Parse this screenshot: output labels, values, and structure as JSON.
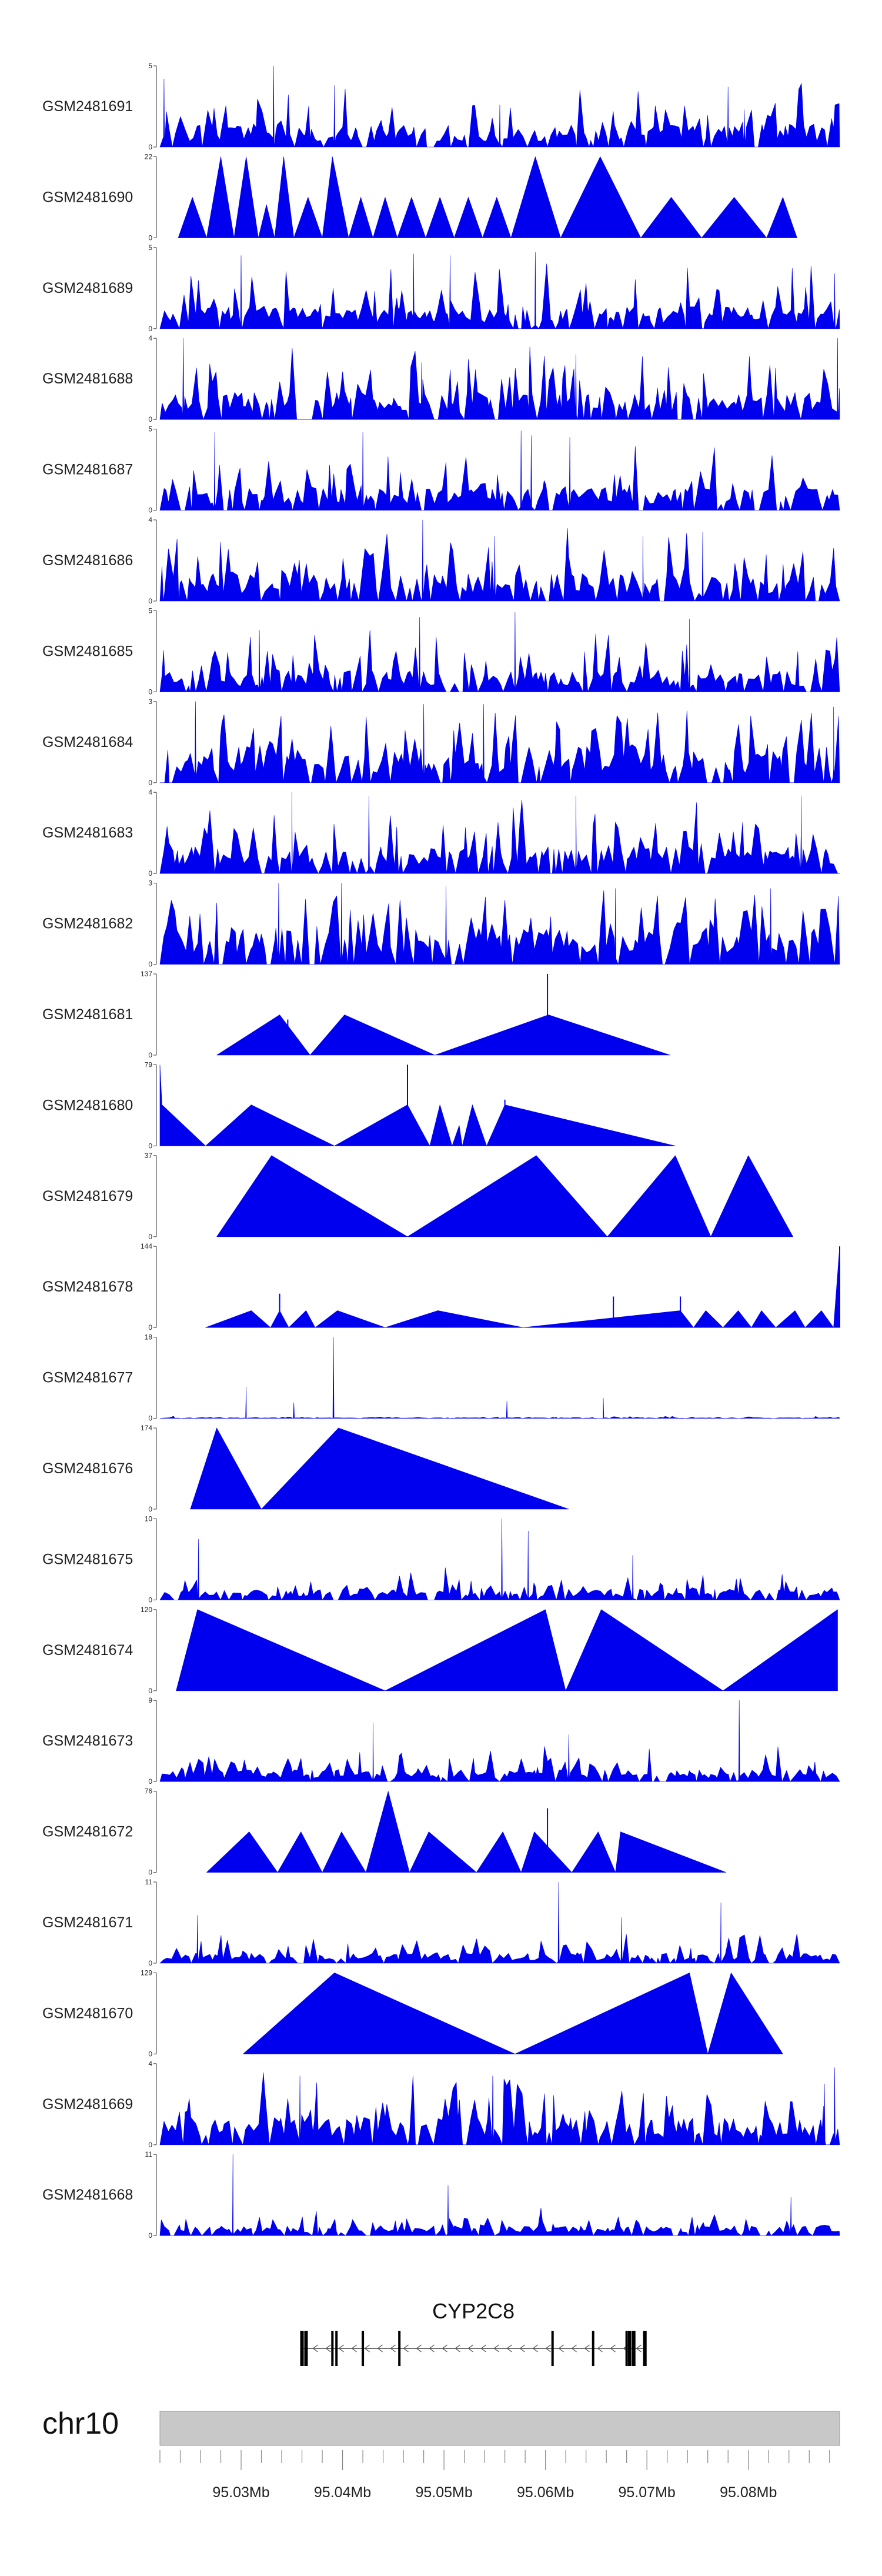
{
  "chart_data": {
    "type": "area",
    "title": "",
    "chromosome": "chr10",
    "gene": {
      "name": "CYP2C8",
      "start": 95036000,
      "end": 95069800,
      "strand": "-",
      "exons": [
        95036000,
        95036400,
        95039000,
        95039400,
        95042000,
        95045600,
        95060700,
        95064700,
        95068000,
        95068300,
        95068700,
        95069800
      ]
    },
    "xlim": [
      95022000,
      95089000
    ],
    "x_ticks": [
      95030000,
      95040000,
      95050000,
      95060000,
      95070000,
      95080000
    ],
    "x_tick_labels": [
      "95.03Mb",
      "95.04Mb",
      "95.05Mb",
      "95.06Mb",
      "95.07Mb",
      "95.08Mb"
    ],
    "series": [
      {
        "name": "GSM2481691",
        "ymax": "5",
        "ymin": "0",
        "ylim": [
          0,
          5
        ],
        "style": "dense",
        "seed": 1,
        "peaks": [
          {
            "x": 95022400,
            "y": 4.2
          },
          {
            "x": 95033200,
            "y": 5
          },
          {
            "x": 95039200,
            "y": 3.8
          },
          {
            "x": 95078000,
            "y": 3.7
          },
          {
            "x": 95079600,
            "y": 2.3
          },
          {
            "x": 95055500,
            "y": 2.6
          }
        ]
      },
      {
        "name": "GSM2481690",
        "ymax": "22",
        "ymin": "0",
        "ylim": [
          0,
          22
        ],
        "style": "sparse",
        "points": [
          [
            95023800,
            0
          ],
          [
            95025200,
            11
          ],
          [
            95026600,
            0
          ],
          [
            95028000,
            22
          ],
          [
            95029300,
            0
          ],
          [
            95030500,
            22
          ],
          [
            95031700,
            0
          ],
          [
            95032500,
            9
          ],
          [
            95033300,
            0
          ],
          [
            95034200,
            22
          ],
          [
            95035200,
            0
          ],
          [
            95036600,
            11
          ],
          [
            95038000,
            0
          ],
          [
            95039000,
            22
          ],
          [
            95040600,
            0
          ],
          [
            95041800,
            11
          ],
          [
            95043000,
            0
          ],
          [
            95044200,
            11
          ],
          [
            95045400,
            0
          ],
          [
            95046800,
            11
          ],
          [
            95048200,
            0
          ],
          [
            95049600,
            11
          ],
          [
            95051000,
            0
          ],
          [
            95052400,
            11
          ],
          [
            95053800,
            0
          ],
          [
            95055200,
            11
          ],
          [
            95056600,
            0
          ],
          [
            95059000,
            22
          ],
          [
            95061500,
            0
          ],
          [
            95065400,
            22
          ],
          [
            95069400,
            0
          ],
          [
            95072400,
            11
          ],
          [
            95075400,
            0
          ],
          [
            95078600,
            11
          ],
          [
            95081800,
            0
          ],
          [
            95083400,
            11
          ],
          [
            95084800,
            0
          ]
        ]
      },
      {
        "name": "GSM2481689",
        "ymax": "5",
        "ymin": "0",
        "ylim": [
          0,
          5
        ],
        "style": "dense",
        "seed": 2,
        "peaks": [
          {
            "x": 95030000,
            "y": 4.5
          },
          {
            "x": 95047000,
            "y": 4.6
          },
          {
            "x": 95050600,
            "y": 4.5
          },
          {
            "x": 95059000,
            "y": 4.7
          },
          {
            "x": 95088500,
            "y": 3.4
          }
        ]
      },
      {
        "name": "GSM2481688",
        "ymax": "4",
        "ymin": "0",
        "ylim": [
          0,
          4
        ],
        "style": "dense",
        "seed": 3,
        "peaks": [
          {
            "x": 95024300,
            "y": 4
          },
          {
            "x": 95088800,
            "y": 4
          },
          {
            "x": 95063000,
            "y": 3.2
          },
          {
            "x": 95047800,
            "y": 2.8
          }
        ]
      },
      {
        "name": "GSM2481687",
        "ymax": "5",
        "ymin": "0",
        "ylim": [
          0,
          5
        ],
        "style": "dense",
        "seed": 4,
        "peaks": [
          {
            "x": 95027400,
            "y": 4.8
          },
          {
            "x": 95042000,
            "y": 4.8
          },
          {
            "x": 95057600,
            "y": 4.9
          },
          {
            "x": 95058600,
            "y": 4.6
          },
          {
            "x": 95062400,
            "y": 4.5
          }
        ]
      },
      {
        "name": "GSM2481686",
        "ymax": "4",
        "ymin": "0",
        "ylim": [
          0,
          4
        ],
        "style": "dense",
        "seed": 5,
        "peaks": [
          {
            "x": 95047900,
            "y": 4
          },
          {
            "x": 95055000,
            "y": 3.2
          },
          {
            "x": 95069600,
            "y": 3.2
          },
          {
            "x": 95075500,
            "y": 3.4
          }
        ]
      },
      {
        "name": "GSM2481685",
        "ymax": "5",
        "ymin": "0",
        "ylim": [
          0,
          5
        ],
        "style": "dense",
        "seed": 6,
        "peaks": [
          {
            "x": 95047600,
            "y": 4.6
          },
          {
            "x": 95057000,
            "y": 4.9
          },
          {
            "x": 95074200,
            "y": 4.5
          },
          {
            "x": 95031800,
            "y": 3.8
          }
        ]
      },
      {
        "name": "GSM2481684",
        "ymax": "3",
        "ymin": "0",
        "ylim": [
          0,
          3
        ],
        "style": "dense",
        "seed": 7,
        "peaks": [
          {
            "x": 95025500,
            "y": 3
          },
          {
            "x": 95048000,
            "y": 2.9
          },
          {
            "x": 95053900,
            "y": 2.9
          },
          {
            "x": 95088400,
            "y": 2.8
          }
        ]
      },
      {
        "name": "GSM2481683",
        "ymax": "4",
        "ymin": "0",
        "ylim": [
          0,
          4
        ],
        "style": "dense",
        "seed": 8,
        "peaks": [
          {
            "x": 95035000,
            "y": 4
          },
          {
            "x": 95042600,
            "y": 3.8
          },
          {
            "x": 95063000,
            "y": 3.8
          },
          {
            "x": 95085200,
            "y": 3.8
          }
        ]
      },
      {
        "name": "GSM2481682",
        "ymax": "3",
        "ymin": "0",
        "ylim": [
          0,
          3
        ],
        "style": "dense",
        "seed": 9,
        "peaks": [
          {
            "x": 95033700,
            "y": 3
          },
          {
            "x": 95039900,
            "y": 3
          },
          {
            "x": 95050200,
            "y": 2.9
          },
          {
            "x": 95082200,
            "y": 2.8
          },
          {
            "x": 95066900,
            "y": 2.8
          }
        ]
      },
      {
        "name": "GSM2481681",
        "ymax": "137",
        "ymin": "0",
        "ylim": [
          0,
          137
        ],
        "style": "sparse",
        "points": [
          [
            95027600,
            0
          ],
          [
            95033800,
            68
          ],
          [
            95036800,
            0
          ],
          [
            95040200,
            68
          ],
          [
            95049100,
            0
          ],
          [
            95060300,
            68
          ],
          [
            95072300,
            0
          ]
        ],
        "spikes": [
          {
            "x": 95034600,
            "y": 60
          },
          {
            "x": 95060200,
            "y": 137
          }
        ]
      },
      {
        "name": "GSM2481680",
        "ymax": "79",
        "ymin": "0",
        "ylim": [
          0,
          79
        ],
        "style": "sparse",
        "points": [
          [
            95022000,
            79
          ],
          [
            95022200,
            40
          ],
          [
            95026500,
            0
          ],
          [
            95031000,
            40
          ],
          [
            95039200,
            0
          ],
          [
            95046400,
            40
          ],
          [
            95048600,
            0
          ],
          [
            95049600,
            40
          ],
          [
            95050800,
            0
          ],
          [
            95051500,
            20
          ],
          [
            95051800,
            0
          ],
          [
            95052800,
            40
          ],
          [
            95054200,
            0
          ],
          [
            95056000,
            40
          ],
          [
            95072800,
            0
          ]
        ],
        "spikes": [
          {
            "x": 95046400,
            "y": 79
          },
          {
            "x": 95056000,
            "y": 45
          }
        ]
      },
      {
        "name": "GSM2481679",
        "ymax": "37",
        "ymin": "0",
        "ylim": [
          0,
          37
        ],
        "style": "sparse",
        "points": [
          [
            95027600,
            0
          ],
          [
            95033000,
            37
          ],
          [
            95046400,
            0
          ],
          [
            95059100,
            37
          ],
          [
            95066100,
            0
          ],
          [
            95072800,
            37
          ],
          [
            95076300,
            0
          ],
          [
            95080000,
            37
          ],
          [
            95084400,
            0
          ]
        ]
      },
      {
        "name": "GSM2481678",
        "ymax": "144",
        "ymin": "0",
        "ylim": [
          0,
          144
        ],
        "style": "sparse",
        "points": [
          [
            95026500,
            0
          ],
          [
            95031000,
            30
          ],
          [
            95032900,
            0
          ],
          [
            95033800,
            30
          ],
          [
            95034700,
            0
          ],
          [
            95036400,
            30
          ],
          [
            95037300,
            0
          ],
          [
            95039500,
            30
          ],
          [
            95044200,
            0
          ],
          [
            95049400,
            30
          ],
          [
            95057800,
            0
          ],
          [
            95073300,
            30
          ],
          [
            95074600,
            0
          ],
          [
            95075800,
            30
          ],
          [
            95077500,
            0
          ],
          [
            95079000,
            30
          ],
          [
            95080300,
            0
          ],
          [
            95081300,
            30
          ],
          [
            95082700,
            0
          ],
          [
            95084600,
            30
          ],
          [
            95085600,
            0
          ],
          [
            95087200,
            30
          ],
          [
            95088400,
            0
          ],
          [
            95089000,
            144
          ]
        ],
        "spikes": [
          {
            "x": 95033800,
            "y": 60
          },
          {
            "x": 95066700,
            "y": 55
          },
          {
            "x": 95073300,
            "y": 55
          },
          {
            "x": 95089000,
            "y": 144
          }
        ]
      },
      {
        "name": "GSM2481677",
        "ymax": "18",
        "ymin": "0",
        "ylim": [
          0,
          18
        ],
        "style": "dense",
        "seed": 10,
        "base": 0.12,
        "peaks": [
          {
            "x": 95039100,
            "y": 18
          },
          {
            "x": 95030500,
            "y": 7
          },
          {
            "x": 95035200,
            "y": 3.5
          },
          {
            "x": 95056200,
            "y": 3.8
          },
          {
            "x": 95065700,
            "y": 4.5
          }
        ]
      },
      {
        "name": "GSM2481676",
        "ymax": "174",
        "ymin": "0",
        "ylim": [
          0,
          174
        ],
        "style": "sparse",
        "points": [
          [
            95025000,
            0
          ],
          [
            95027600,
            174
          ],
          [
            95032000,
            0
          ],
          [
            95039600,
            174
          ],
          [
            95062300,
            0
          ]
        ]
      },
      {
        "name": "GSM2481675",
        "ymax": "10",
        "ymin": "0",
        "ylim": [
          0,
          10
        ],
        "style": "dense",
        "seed": 11,
        "peaks": [
          {
            "x": 95055700,
            "y": 10
          },
          {
            "x": 95058300,
            "y": 8.5
          },
          {
            "x": 95025800,
            "y": 7.5
          },
          {
            "x": 95068600,
            "y": 5.5
          }
        ]
      },
      {
        "name": "GSM2481674",
        "ymax": "120",
        "ymin": "0",
        "ylim": [
          0,
          120
        ],
        "style": "sparse",
        "points": [
          [
            95023600,
            0
          ],
          [
            95025700,
            120
          ],
          [
            95044200,
            0
          ],
          [
            95060000,
            120
          ],
          [
            95062000,
            0
          ],
          [
            95065500,
            120
          ],
          [
            95077500,
            0
          ],
          [
            95088800,
            120
          ]
        ]
      },
      {
        "name": "GSM2481673",
        "ymax": "9",
        "ymin": "0",
        "ylim": [
          0,
          9
        ],
        "style": "dense",
        "seed": 12,
        "peaks": [
          {
            "x": 95079100,
            "y": 9
          },
          {
            "x": 95043000,
            "y": 6.5
          },
          {
            "x": 95062300,
            "y": 5.2
          }
        ]
      },
      {
        "name": "GSM2481672",
        "ymax": "76",
        "ymin": "0",
        "ylim": [
          0,
          76
        ],
        "style": "sparse",
        "points": [
          [
            95026600,
            0
          ],
          [
            95030800,
            38
          ],
          [
            95033600,
            0
          ],
          [
            95035900,
            38
          ],
          [
            95038000,
            0
          ],
          [
            95039900,
            38
          ],
          [
            95042300,
            0
          ],
          [
            95044500,
            76
          ],
          [
            95046600,
            0
          ],
          [
            95048500,
            38
          ],
          [
            95053200,
            0
          ],
          [
            95055800,
            38
          ],
          [
            95057600,
            0
          ],
          [
            95058900,
            38
          ],
          [
            95062600,
            0
          ],
          [
            95065200,
            38
          ],
          [
            95066900,
            0
          ],
          [
            95067400,
            38
          ],
          [
            95077800,
            0
          ]
        ],
        "spikes": [
          {
            "x": 95060200,
            "y": 60
          },
          {
            "x": 95048600,
            "y": 30
          }
        ]
      },
      {
        "name": "GSM2481671",
        "ymax": "11",
        "ymin": "0",
        "ylim": [
          0,
          11
        ],
        "style": "dense",
        "seed": 13,
        "peaks": [
          {
            "x": 95061300,
            "y": 11
          },
          {
            "x": 95077300,
            "y": 8.2
          },
          {
            "x": 95067500,
            "y": 6.2
          },
          {
            "x": 95025700,
            "y": 6.5
          }
        ]
      },
      {
        "name": "GSM2481670",
        "ymax": "129",
        "ymin": "0",
        "ylim": [
          0,
          129
        ],
        "style": "sparse",
        "points": [
          [
            95030200,
            0
          ],
          [
            95039200,
            129
          ],
          [
            95057000,
            0
          ],
          [
            95074200,
            129
          ],
          [
            95076000,
            0
          ],
          [
            95078300,
            129
          ],
          [
            95083400,
            0
          ]
        ]
      },
      {
        "name": "GSM2481669",
        "ymax": "4",
        "ymin": "0",
        "ylim": [
          0,
          4
        ],
        "style": "dense",
        "seed": 14,
        "peaks": [
          {
            "x": 95035800,
            "y": 3.4
          },
          {
            "x": 95054800,
            "y": 3.4
          },
          {
            "x": 95088500,
            "y": 3.8
          },
          {
            "x": 95087500,
            "y": 3
          }
        ]
      },
      {
        "name": "GSM2481668",
        "ymax": "11",
        "ymin": "0",
        "ylim": [
          0,
          11
        ],
        "style": "dense",
        "seed": 15,
        "peaks": [
          {
            "x": 95029200,
            "y": 11
          },
          {
            "x": 95050400,
            "y": 6.8
          },
          {
            "x": 95084200,
            "y": 5.2
          }
        ]
      }
    ]
  }
}
